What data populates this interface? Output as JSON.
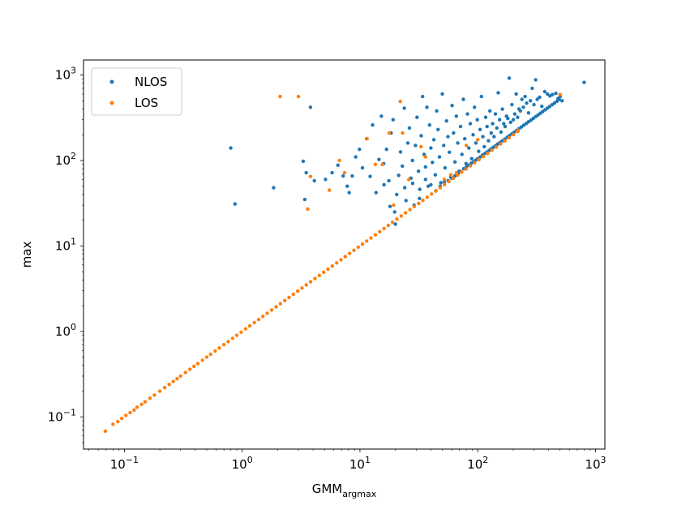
{
  "chart_data": {
    "type": "scatter",
    "title": "",
    "xlabel": "GMM",
    "xlabel_sub": "argmax",
    "ylabel": "max",
    "xscale": "log",
    "yscale": "log",
    "xlim": [
      0.045,
      1200
    ],
    "ylim": [
      0.042,
      1500
    ],
    "xticks": [
      {
        "value": 0.1,
        "base": "10",
        "exp": "−1"
      },
      {
        "value": 1,
        "base": "10",
        "exp": "0"
      },
      {
        "value": 10,
        "base": "10",
        "exp": "1"
      },
      {
        "value": 100,
        "base": "10",
        "exp": "2"
      },
      {
        "value": 1000,
        "base": "10",
        "exp": "3"
      }
    ],
    "yticks": [
      {
        "value": 0.1,
        "base": "10",
        "exp": "−1"
      },
      {
        "value": 1,
        "base": "10",
        "exp": "0"
      },
      {
        "value": 10,
        "base": "10",
        "exp": "1"
      },
      {
        "value": 100,
        "base": "10",
        "exp": "2"
      },
      {
        "value": 1000,
        "base": "10",
        "exp": "3"
      }
    ],
    "grid": false,
    "legend_position": "top-left",
    "series": [
      {
        "name": "NLOS",
        "color": "#1f77b4",
        "points": [
          [
            0.8,
            140
          ],
          [
            0.87,
            31
          ],
          [
            1.85,
            48
          ],
          [
            3.8,
            420
          ],
          [
            3.3,
            98
          ],
          [
            3.5,
            72
          ],
          [
            3.4,
            35
          ],
          [
            4.1,
            58
          ],
          [
            5.1,
            60
          ],
          [
            5.8,
            72
          ],
          [
            6.5,
            88
          ],
          [
            7.2,
            66
          ],
          [
            7.8,
            50
          ],
          [
            8.1,
            42
          ],
          [
            8.6,
            66
          ],
          [
            9.2,
            110
          ],
          [
            9.9,
            135
          ],
          [
            10.5,
            82
          ],
          [
            11.4,
            180
          ],
          [
            12.2,
            65
          ],
          [
            12.8,
            260
          ],
          [
            13.7,
            42
          ],
          [
            14.5,
            103
          ],
          [
            15.2,
            330
          ],
          [
            15.9,
            92
          ],
          [
            16.8,
            135
          ],
          [
            17.6,
            58
          ],
          [
            18.4,
            210
          ],
          [
            19.1,
            300
          ],
          [
            19.7,
            25
          ],
          [
            20.5,
            40
          ],
          [
            21.3,
            67
          ],
          [
            22.1,
            126
          ],
          [
            22.9,
            86
          ],
          [
            23.8,
            410
          ],
          [
            24.6,
            34
          ],
          [
            25.5,
            160
          ],
          [
            26.3,
            240
          ],
          [
            27.1,
            62
          ],
          [
            27.9,
            100
          ],
          [
            28.8,
            30
          ],
          [
            29.6,
            150
          ],
          [
            30.5,
            320
          ],
          [
            31.4,
            75
          ],
          [
            32.2,
            46
          ],
          [
            33.1,
            195
          ],
          [
            34.0,
            560
          ],
          [
            35.0,
            118
          ],
          [
            36.0,
            84
          ],
          [
            37.0,
            420
          ],
          [
            38.0,
            50
          ],
          [
            39.0,
            260
          ],
          [
            40.0,
            140
          ],
          [
            41.2,
            95
          ],
          [
            42.4,
            175
          ],
          [
            43.6,
            68
          ],
          [
            44.8,
            380
          ],
          [
            46.0,
            230
          ],
          [
            47.3,
            110
          ],
          [
            48.6,
            55
          ],
          [
            50.0,
            600
          ],
          [
            51.4,
            150
          ],
          [
            52.8,
            82
          ],
          [
            54.3,
            290
          ],
          [
            55.8,
            190
          ],
          [
            57.4,
            125
          ],
          [
            59.0,
            64
          ],
          [
            60.6,
            440
          ],
          [
            62.3,
            210
          ],
          [
            64.0,
            96
          ],
          [
            65.8,
            330
          ],
          [
            67.6,
            160
          ],
          [
            69.5,
            75
          ],
          [
            71.4,
            250
          ],
          [
            73.4,
            118
          ],
          [
            75.4,
            520
          ],
          [
            77.5,
            180
          ],
          [
            79.6,
            92
          ],
          [
            81.8,
            350
          ],
          [
            84.1,
            140
          ],
          [
            86.4,
            270
          ],
          [
            88.8,
            105
          ],
          [
            91.3,
            200
          ],
          [
            93.8,
            420
          ],
          [
            96.4,
            160
          ],
          [
            99.1,
            300
          ],
          [
            101.8,
            128
          ],
          [
            104.6,
            230
          ],
          [
            107.5,
            560
          ],
          [
            110.5,
            190
          ],
          [
            113.6,
            145
          ],
          [
            116.7,
            320
          ],
          [
            120,
            250
          ],
          [
            123.3,
            170
          ],
          [
            126.7,
            380
          ],
          [
            130.2,
            210
          ],
          [
            133.8,
            270
          ],
          [
            137.5,
            190
          ],
          [
            141.3,
            350
          ],
          [
            145.2,
            240
          ],
          [
            149.2,
            620
          ],
          [
            153.3,
            300
          ],
          [
            157.5,
            215
          ],
          [
            161.8,
            400
          ],
          [
            166.2,
            270
          ],
          [
            170.7,
            250
          ],
          [
            175.3,
            330
          ],
          [
            180.1,
            310
          ],
          [
            185,
            920
          ],
          [
            190,
            280
          ],
          [
            195,
            450
          ],
          [
            200.5,
            300
          ],
          [
            206,
            350
          ],
          [
            212,
            600
          ],
          [
            218,
            320
          ],
          [
            224,
            400
          ],
          [
            230,
            380
          ],
          [
            237,
            520
          ],
          [
            244,
            420
          ],
          [
            252,
            560
          ],
          [
            260,
            470
          ],
          [
            270,
            360
          ],
          [
            280,
            500
          ],
          [
            290,
            700
          ],
          [
            300,
            450
          ],
          [
            310,
            880
          ],
          [
            320,
            520
          ],
          [
            335,
            550
          ],
          [
            350,
            430
          ],
          [
            370,
            640
          ],
          [
            390,
            600
          ],
          [
            410,
            570
          ],
          [
            430,
            590
          ],
          [
            460,
            610
          ],
          [
            480,
            530
          ],
          [
            500,
            560
          ],
          [
            520,
            500
          ],
          [
            800,
            820
          ],
          [
            16,
            52
          ],
          [
            18,
            29
          ],
          [
            20,
            18
          ],
          [
            24,
            48
          ],
          [
            28,
            54
          ],
          [
            32,
            36
          ],
          [
            36,
            60
          ],
          [
            40,
            52
          ],
          [
            44,
            44
          ],
          [
            48,
            50
          ],
          [
            52,
            56
          ],
          [
            56,
            58
          ],
          [
            60,
            62
          ],
          [
            64,
            66
          ],
          [
            68,
            70
          ],
          [
            72,
            74
          ],
          [
            76,
            80
          ],
          [
            80,
            84
          ],
          [
            84,
            88
          ],
          [
            88,
            93
          ],
          [
            92,
            96
          ],
          [
            96,
            101
          ],
          [
            100,
            105
          ],
          [
            105,
            110
          ],
          [
            110,
            116
          ],
          [
            115,
            121
          ],
          [
            120,
            126
          ],
          [
            125,
            131
          ],
          [
            130,
            137
          ],
          [
            136,
            143
          ],
          [
            142,
            149
          ],
          [
            148,
            156
          ],
          [
            155,
            163
          ],
          [
            162,
            170
          ],
          [
            170,
            178
          ],
          [
            178,
            187
          ],
          [
            186,
            196
          ],
          [
            195,
            205
          ],
          [
            204,
            215
          ],
          [
            214,
            225
          ],
          [
            224,
            236
          ],
          [
            235,
            247
          ],
          [
            246,
            259
          ],
          [
            258,
            271
          ],
          [
            270,
            284
          ],
          [
            283,
            297
          ],
          [
            296,
            311
          ],
          [
            310,
            326
          ],
          [
            325,
            341
          ],
          [
            340,
            357
          ],
          [
            356,
            374
          ],
          [
            373,
            392
          ],
          [
            390,
            410
          ],
          [
            408,
            428
          ],
          [
            428,
            449
          ],
          [
            448,
            470
          ],
          [
            470,
            493
          ],
          [
            492,
            516
          ]
        ]
      },
      {
        "name": "LOS",
        "color": "#ff7f0e",
        "points": [
          [
            2.1,
            560
          ],
          [
            3.0,
            560
          ],
          [
            3.6,
            27
          ],
          [
            3.8,
            65
          ],
          [
            5.5,
            45
          ],
          [
            6.7,
            100
          ],
          [
            7.4,
            72
          ],
          [
            11.5,
            180
          ],
          [
            13.5,
            90
          ],
          [
            15.5,
            90
          ],
          [
            17.7,
            210
          ],
          [
            19.3,
            30
          ],
          [
            22,
            490
          ],
          [
            23,
            210
          ],
          [
            26,
            60
          ],
          [
            33,
            145
          ],
          [
            36,
            110
          ],
          [
            52,
            60
          ],
          [
            59,
            68
          ],
          [
            66,
            72
          ],
          [
            80,
            150
          ],
          [
            100,
            175
          ],
          [
            220,
            225
          ],
          [
            500,
            590
          ],
          [
            0.069,
            0.068
          ],
          [
            0.08,
            0.082
          ],
          [
            0.088,
            0.088
          ],
          [
            0.095,
            0.096
          ],
          [
            0.103,
            0.104
          ],
          [
            0.112,
            0.112
          ],
          [
            0.121,
            0.12
          ],
          [
            0.128,
            0.13
          ],
          [
            0.14,
            0.14
          ],
          [
            0.15,
            0.15
          ],
          [
            0.165,
            0.165
          ],
          [
            0.18,
            0.18
          ],
          [
            0.2,
            0.2
          ],
          [
            0.22,
            0.22
          ],
          [
            0.24,
            0.24
          ],
          [
            0.26,
            0.26
          ],
          [
            0.28,
            0.28
          ],
          [
            0.3,
            0.3
          ],
          [
            0.33,
            0.33
          ],
          [
            0.36,
            0.36
          ],
          [
            0.39,
            0.39
          ],
          [
            0.42,
            0.42
          ],
          [
            0.46,
            0.46
          ],
          [
            0.5,
            0.5
          ],
          [
            0.54,
            0.54
          ],
          [
            0.59,
            0.59
          ],
          [
            0.64,
            0.64
          ],
          [
            0.7,
            0.7
          ],
          [
            0.76,
            0.76
          ],
          [
            0.83,
            0.83
          ],
          [
            0.9,
            0.9
          ],
          [
            0.98,
            0.98
          ],
          [
            1.07,
            1.07
          ],
          [
            1.16,
            1.16
          ],
          [
            1.27,
            1.27
          ],
          [
            1.38,
            1.38
          ],
          [
            1.5,
            1.5
          ],
          [
            1.63,
            1.63
          ],
          [
            1.78,
            1.78
          ],
          [
            1.94,
            1.94
          ],
          [
            2.11,
            2.11
          ],
          [
            2.3,
            2.3
          ],
          [
            2.5,
            2.5
          ],
          [
            2.72,
            2.72
          ],
          [
            2.96,
            2.96
          ],
          [
            3.22,
            3.22
          ],
          [
            3.5,
            3.5
          ],
          [
            3.81,
            3.81
          ],
          [
            4.15,
            4.15
          ],
          [
            4.52,
            4.52
          ],
          [
            4.92,
            4.92
          ],
          [
            5.35,
            5.35
          ],
          [
            5.82,
            5.82
          ],
          [
            6.34,
            6.34
          ],
          [
            6.9,
            6.9
          ],
          [
            7.5,
            7.5
          ],
          [
            8.17,
            8.17
          ],
          [
            8.89,
            8.89
          ],
          [
            9.67,
            9.67
          ],
          [
            10.5,
            10.5
          ],
          [
            11.4,
            11.4
          ],
          [
            12.4,
            12.4
          ],
          [
            13.5,
            13.5
          ],
          [
            14.7,
            14.7
          ],
          [
            16,
            16
          ],
          [
            17.4,
            17.4
          ],
          [
            18.9,
            18.9
          ],
          [
            20.6,
            20.6
          ],
          [
            22.4,
            22.4
          ],
          [
            24.4,
            24.4
          ],
          [
            26.6,
            26.6
          ],
          [
            28.9,
            28.9
          ],
          [
            31.5,
            31.5
          ],
          [
            34.2,
            34.2
          ],
          [
            37.2,
            37.2
          ],
          [
            40.5,
            40.5
          ],
          [
            44.1,
            44.1
          ],
          [
            48,
            48
          ],
          [
            52.2,
            52.2
          ],
          [
            56.8,
            56.8
          ],
          [
            61.8,
            61.8
          ],
          [
            67.2,
            67.2
          ],
          [
            73.1,
            73.1
          ],
          [
            79.5,
            79.5
          ],
          [
            86.5,
            86.5
          ],
          [
            94.1,
            94.1
          ],
          [
            102.4,
            102.4
          ],
          [
            111.4,
            111.4
          ],
          [
            121.2,
            121.2
          ],
          [
            131.9,
            131.9
          ],
          [
            143.5,
            143.5
          ],
          [
            156.1,
            156.1
          ],
          [
            169.8,
            169.8
          ],
          [
            184.7,
            184.7
          ],
          [
            201,
            201
          ],
          [
            218.6,
            218.6
          ]
        ]
      }
    ]
  }
}
